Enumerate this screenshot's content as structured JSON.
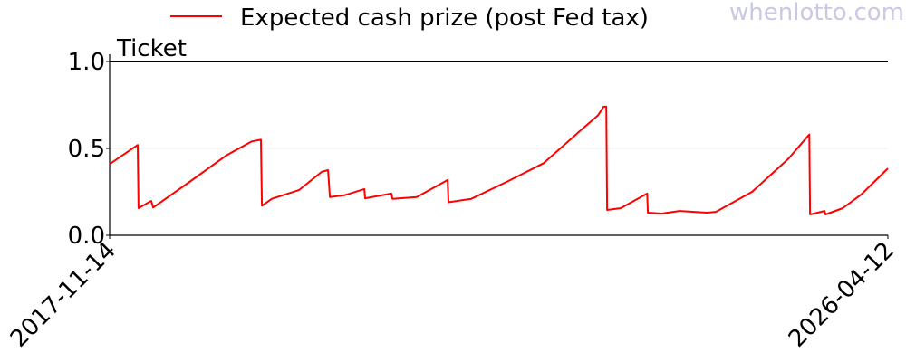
{
  "watermark": "whenlotto.com",
  "chart_data": {
    "type": "line",
    "title": "",
    "ylabel": "Ticket",
    "xlabel": "",
    "xlim": [
      "2017-11-14",
      "2026-04-12"
    ],
    "ylim": [
      0,
      1.0
    ],
    "x_tick_labels": [
      "2017-11-14",
      "2026-04-12"
    ],
    "y_ticks": [
      0.0,
      0.5,
      1.0
    ],
    "y_tick_labels": [
      "0.0",
      "0.5",
      "1.0"
    ],
    "grid": "horizontal at 0.5 (faint)",
    "reference_line": {
      "y": 1.0,
      "color": "#000000"
    },
    "legend": {
      "placement": "top",
      "entries": [
        "Expected cash prize (post Fed tax)"
      ]
    },
    "series": [
      {
        "name": "Expected cash prize (post Fed tax)",
        "color": "#ff0000",
        "points": [
          [
            "2017-11-14",
            0.41
          ],
          [
            "2018-03-05",
            0.52
          ],
          [
            "2018-03-08",
            0.156
          ],
          [
            "2018-04-27",
            0.198
          ],
          [
            "2018-05-05",
            0.16
          ],
          [
            "2018-09-28",
            0.31
          ],
          [
            "2019-02-18",
            0.46
          ],
          [
            "2019-05-29",
            0.54
          ],
          [
            "2019-07-04",
            0.55
          ],
          [
            "2019-07-08",
            0.17
          ],
          [
            "2019-08-16",
            0.21
          ],
          [
            "2019-12-01",
            0.26
          ],
          [
            "2020-02-29",
            0.365
          ],
          [
            "2020-03-25",
            0.375
          ],
          [
            "2020-04-01",
            0.22
          ],
          [
            "2020-05-28",
            0.23
          ],
          [
            "2020-08-15",
            0.266
          ],
          [
            "2020-08-18",
            0.213
          ],
          [
            "2020-11-30",
            0.24
          ],
          [
            "2020-12-04",
            0.21
          ],
          [
            "2021-03-10",
            0.22
          ],
          [
            "2021-07-10",
            0.318
          ],
          [
            "2021-07-13",
            0.19
          ],
          [
            "2021-10-11",
            0.21
          ],
          [
            "2022-03-03",
            0.31
          ],
          [
            "2022-07-24",
            0.415
          ],
          [
            "2022-12-14",
            0.6
          ],
          [
            "2023-02-23",
            0.69
          ],
          [
            "2023-03-17",
            0.74
          ],
          [
            "2023-03-28",
            0.74
          ],
          [
            "2023-03-31",
            0.146
          ],
          [
            "2023-05-24",
            0.156
          ],
          [
            "2023-09-05",
            0.24
          ],
          [
            "2023-09-08",
            0.13
          ],
          [
            "2023-11-01",
            0.125
          ],
          [
            "2024-01-11",
            0.14
          ],
          [
            "2024-04-28",
            0.13
          ],
          [
            "2024-06-02",
            0.135
          ],
          [
            "2024-10-23",
            0.25
          ],
          [
            "2025-03-15",
            0.44
          ],
          [
            "2025-06-06",
            0.58
          ],
          [
            "2025-06-09",
            0.12
          ],
          [
            "2025-08-05",
            0.14
          ],
          [
            "2025-08-09",
            0.12
          ],
          [
            "2025-10-16",
            0.156
          ],
          [
            "2025-12-27",
            0.234
          ],
          [
            "2026-04-12",
            0.385
          ]
        ]
      }
    ]
  }
}
